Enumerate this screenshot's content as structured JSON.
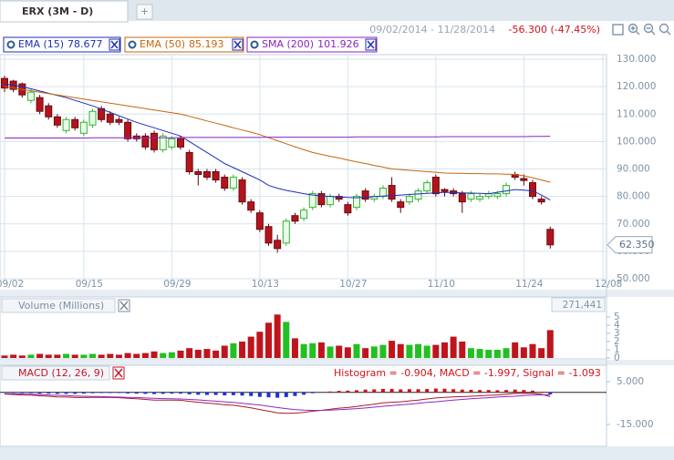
{
  "header": {
    "tab": "ERX (3M - D)",
    "new_tab": "+",
    "date_range": "09/02/2014 - 11/28/2014",
    "change": "-56.300 (-47.45%)"
  },
  "chart_data": [
    {
      "type": "candlestick",
      "categories": [
        "09/02",
        null,
        null,
        null,
        null,
        null,
        null,
        null,
        null,
        "09/15",
        null,
        null,
        null,
        null,
        null,
        null,
        null,
        null,
        null,
        "09/29",
        null,
        null,
        null,
        null,
        null,
        null,
        null,
        null,
        null,
        "10/13",
        null,
        null,
        null,
        null,
        null,
        null,
        null,
        null,
        null,
        "10/27",
        null,
        null,
        null,
        null,
        null,
        null,
        null,
        null,
        null,
        "11/10",
        null,
        null,
        null,
        null,
        null,
        null,
        null,
        null,
        null,
        "11/24",
        null,
        null,
        null,
        null,
        null,
        null,
        null,
        null,
        "12/08"
      ],
      "open": [
        123,
        122,
        121,
        115,
        116,
        113,
        109,
        104,
        108,
        103,
        106,
        112,
        110,
        108,
        107,
        102,
        102,
        103,
        97,
        98,
        101,
        96,
        89,
        89,
        89,
        87,
        83,
        86,
        78,
        74,
        69,
        64,
        63,
        73,
        72,
        76,
        81,
        77,
        80,
        77,
        76,
        82,
        79,
        80,
        84,
        78,
        78,
        79,
        82,
        87,
        82.5,
        82,
        81,
        79,
        79,
        80,
        80,
        81,
        88,
        86.5,
        85,
        79,
        68,
        null,
        null,
        null,
        null,
        null,
        null
      ],
      "high": [
        124,
        122.5,
        121.5,
        119,
        117,
        114,
        110,
        109,
        109,
        108,
        112,
        113,
        111,
        109,
        108,
        103,
        103,
        104,
        103,
        102,
        102,
        97,
        90,
        90,
        90,
        88,
        88,
        87,
        79,
        75,
        70,
        66,
        72,
        74,
        76,
        82,
        82,
        81,
        81,
        78,
        81,
        83,
        81,
        84,
        87,
        79,
        81,
        83,
        86,
        88,
        83,
        83,
        82,
        82,
        81,
        82,
        82,
        85,
        89,
        88,
        86,
        80,
        69,
        null,
        null,
        null,
        null,
        null,
        null
      ],
      "low": [
        118,
        118,
        116,
        114,
        110,
        108,
        105,
        103,
        104,
        102,
        105,
        107,
        106,
        106,
        100,
        100,
        97,
        96,
        96,
        97,
        97,
        88,
        84,
        86,
        85,
        82,
        82,
        77,
        74,
        67,
        62,
        59.5,
        62,
        70,
        71,
        75,
        76,
        76,
        78,
        73,
        75,
        78,
        78,
        79,
        78,
        74,
        77,
        78,
        81,
        80,
        80,
        80,
        74,
        78,
        78,
        79,
        79,
        80,
        86,
        84,
        79,
        77,
        61,
        null,
        null,
        null,
        null,
        null,
        null
      ],
      "close": [
        119.5,
        119,
        117,
        118,
        111,
        109,
        106,
        108,
        105,
        107,
        111,
        108,
        107,
        107,
        101,
        101,
        98,
        97,
        102,
        101,
        98,
        89,
        88,
        87,
        86,
        83,
        87,
        78,
        75,
        68,
        63,
        61,
        71,
        71,
        75,
        81,
        77,
        80,
        79,
        74,
        80,
        79,
        80,
        83,
        79,
        76,
        80,
        82,
        85,
        81,
        81.8,
        81,
        78,
        81,
        80,
        81,
        81,
        84,
        87,
        85.8,
        80,
        78,
        62.35,
        null,
        null,
        null,
        null,
        null,
        null
      ],
      "up_color": "#33b533",
      "down_color": "#b3141c",
      "price_tag": "62.350",
      "ylim": [
        50,
        130
      ],
      "yticks": [
        {
          "value": 50,
          "label": "50.000"
        },
        {
          "value": 60,
          "label": "60.000"
        },
        {
          "value": 70,
          "label": "70.000"
        },
        {
          "value": 80,
          "label": "80.000"
        },
        {
          "value": 90,
          "label": "90.000"
        },
        {
          "value": 100,
          "label": "100.000"
        },
        {
          "value": 110,
          "label": "110.000"
        },
        {
          "value": 120,
          "label": "120.000"
        },
        {
          "value": 130,
          "label": "130.000"
        }
      ],
      "grid": true,
      "series": [
        {
          "name": "EMA (15)",
          "color": "#1c2fb8",
          "values": [
            121,
            120.5,
            120,
            119.2,
            118.4,
            117.6,
            116.8,
            116,
            115,
            114,
            113,
            111.8,
            110.6,
            109.4,
            108.2,
            107,
            106,
            105,
            104,
            103,
            102,
            100,
            98,
            96,
            94,
            92,
            90.5,
            89,
            87.5,
            86,
            84,
            83,
            82.2,
            81.6,
            81,
            80.5,
            80.2,
            80,
            79.8,
            79.6,
            79.5,
            79.7,
            79.9,
            80.1,
            80.3,
            80.5,
            80.7,
            80.9,
            81.1,
            81.3,
            81.5,
            81.4,
            81.3,
            81.2,
            81.1,
            81,
            81.5,
            82,
            82.5,
            82.3,
            82,
            80.5,
            78.677,
            null,
            null,
            null,
            null,
            null,
            null
          ]
        },
        {
          "name": "EMA (50)",
          "color": "#c8650f",
          "values": [
            120,
            119.5,
            119,
            118.5,
            118,
            117.5,
            117,
            116.5,
            116,
            115.5,
            115,
            114.5,
            114,
            113.5,
            113,
            112.5,
            112,
            111.5,
            111,
            110.5,
            110,
            109.2,
            108.4,
            107.5,
            106.7,
            105.9,
            105,
            104.2,
            103.4,
            102.5,
            101.4,
            100.3,
            99.2,
            98.1,
            97,
            96,
            95.3,
            94.6,
            94,
            93.3,
            92.6,
            92,
            91.3,
            90.7,
            90,
            89.8,
            89.5,
            89.3,
            89,
            88.8,
            88.5,
            88.4,
            88.4,
            88.3,
            88.3,
            88.2,
            88.2,
            88.1,
            88,
            87.5,
            86.8,
            86,
            85.193,
            null,
            null,
            null,
            null,
            null,
            null
          ]
        },
        {
          "name": "SMA (200)",
          "color": "#8b22c0",
          "values": [
            101.3,
            101.3,
            101.3,
            101.3,
            101.3,
            101.3,
            101.3,
            101.3,
            101.3,
            101.3,
            101.4,
            101.4,
            101.4,
            101.4,
            101.4,
            101.4,
            101.4,
            101.4,
            101.4,
            101.4,
            101.5,
            101.5,
            101.5,
            101.5,
            101.5,
            101.5,
            101.5,
            101.5,
            101.5,
            101.5,
            101.6,
            101.6,
            101.6,
            101.6,
            101.6,
            101.6,
            101.6,
            101.6,
            101.6,
            101.6,
            101.7,
            101.7,
            101.7,
            101.7,
            101.7,
            101.7,
            101.7,
            101.7,
            101.7,
            101.7,
            101.8,
            101.8,
            101.8,
            101.8,
            101.8,
            101.8,
            101.8,
            101.8,
            101.8,
            101.8,
            101.9,
            101.9,
            101.926,
            null,
            null,
            null,
            null,
            null,
            null
          ]
        }
      ]
    },
    {
      "type": "bar",
      "title": "Volume (Millions)",
      "total_label": "271,441",
      "values": [
        0.3,
        0.4,
        0.3,
        0.4,
        0.5,
        0.4,
        0.4,
        0.5,
        0.4,
        0.4,
        0.5,
        0.4,
        0.5,
        0.4,
        0.6,
        0.5,
        0.6,
        0.8,
        0.6,
        0.7,
        0.9,
        1.2,
        1.0,
        1.1,
        0.9,
        1.5,
        1.8,
        2.0,
        2.6,
        3.2,
        4.3,
        5.3,
        4.4,
        2.4,
        1.7,
        1.8,
        1.9,
        1.4,
        1.5,
        1.3,
        1.7,
        1.2,
        1.4,
        1.6,
        2.1,
        1.7,
        1.6,
        1.7,
        1.5,
        1.6,
        1.9,
        2.6,
        2.0,
        1.2,
        1.1,
        1.0,
        1.0,
        1.2,
        1.9,
        1.3,
        1.7,
        1.2,
        3.4,
        null,
        null,
        null,
        null,
        null,
        null
      ],
      "up_color": "#22c022",
      "down_color": "#c0141c",
      "ylim": [
        0,
        5
      ],
      "yticks": [
        0,
        1,
        2,
        3,
        4,
        5
      ]
    },
    {
      "type": "macd",
      "title": "MACD (12, 26, 9)",
      "legend_text": "Histogram = -0.904, MACD = -1.997, Signal = -1.093",
      "positive_color": "#d0141c",
      "negative_color": "#1f2fe0",
      "series": [
        {
          "name": "Histogram",
          "values": [
            -0.2,
            -0.3,
            -0.4,
            -0.4,
            -0.6,
            -0.6,
            -0.7,
            -0.7,
            -0.7,
            -0.6,
            -0.4,
            -0.3,
            -0.3,
            -0.3,
            -0.5,
            -0.6,
            -0.7,
            -0.8,
            -0.7,
            -0.6,
            -0.6,
            -0.9,
            -1.1,
            -1.2,
            -1.2,
            -1.4,
            -1.3,
            -1.5,
            -1.7,
            -2.1,
            -2.3,
            -2.5,
            -2.2,
            -1.7,
            -1.1,
            -0.4,
            0,
            0.4,
            0.7,
            0.8,
            1.0,
            1.3,
            1.4,
            1.6,
            1.6,
            1.4,
            1.5,
            1.5,
            1.6,
            1.8,
            1.7,
            1.5,
            1.3,
            1.2,
            1.1,
            1.1,
            1.0,
            1.1,
            1.3,
            1.1,
            0.8,
            0.3,
            -0.904,
            null,
            null,
            null,
            null,
            null,
            null
          ]
        },
        {
          "name": "MACD",
          "color": "#b0182a",
          "values": [
            -0.8,
            -1,
            -1.2,
            -1.3,
            -1.6,
            -1.8,
            -2.1,
            -2.2,
            -2.4,
            -2.4,
            -2.3,
            -2.3,
            -2.4,
            -2.5,
            -2.8,
            -3.0,
            -3.3,
            -3.6,
            -3.6,
            -3.6,
            -3.7,
            -4.2,
            -4.6,
            -5.0,
            -5.3,
            -5.8,
            -6.0,
            -6.6,
            -7.2,
            -8.0,
            -8.8,
            -9.6,
            -9.8,
            -9.7,
            -9.4,
            -8.8,
            -8.4,
            -7.9,
            -7.4,
            -7.1,
            -6.6,
            -6.0,
            -5.5,
            -4.9,
            -4.6,
            -4.4,
            -4.0,
            -3.6,
            -3.1,
            -2.6,
            -2.3,
            -2.1,
            -2.0,
            -1.8,
            -1.6,
            -1.4,
            -1.2,
            -0.9,
            -0.5,
            -0.4,
            -0.5,
            -0.9,
            -1.997,
            null,
            null,
            null,
            null,
            null,
            null
          ]
        },
        {
          "name": "Signal",
          "color": "#8a2bc2",
          "values": [
            -0.6,
            -0.7,
            -0.8,
            -0.9,
            -1.0,
            -1.2,
            -1.4,
            -1.5,
            -1.7,
            -1.8,
            -1.9,
            -2.0,
            -2.1,
            -2.2,
            -2.3,
            -2.4,
            -2.6,
            -2.8,
            -2.9,
            -3.0,
            -3.1,
            -3.3,
            -3.5,
            -3.8,
            -4.1,
            -4.4,
            -4.7,
            -5.1,
            -5.5,
            -5.9,
            -6.5,
            -7.1,
            -7.6,
            -8.0,
            -8.3,
            -8.4,
            -8.4,
            -8.3,
            -8.1,
            -7.9,
            -7.6,
            -7.3,
            -6.9,
            -6.5,
            -6.2,
            -5.8,
            -5.5,
            -5.1,
            -4.7,
            -4.4,
            -4.0,
            -3.6,
            -3.3,
            -3.0,
            -2.7,
            -2.5,
            -2.2,
            -2.0,
            -1.8,
            -1.5,
            -1.3,
            -1.2,
            -1.093,
            null,
            null,
            null,
            null,
            null,
            null
          ]
        }
      ],
      "ylim": [
        -15,
        5
      ],
      "yticks": [
        {
          "value": -15,
          "label": "-15.000"
        },
        {
          "value": 5,
          "label": "5.000"
        }
      ]
    }
  ]
}
